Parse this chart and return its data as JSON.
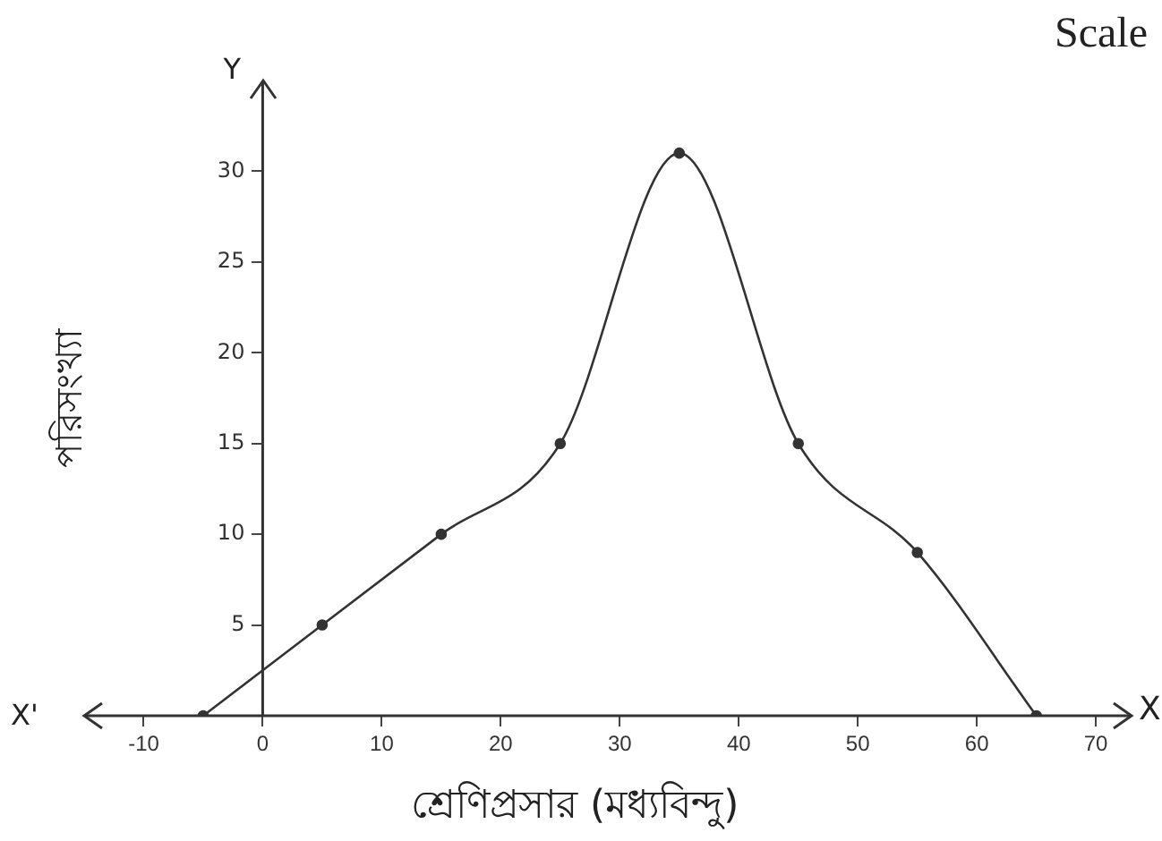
{
  "chart_data": {
    "type": "line",
    "xlabel": "শ্রেণিপ্রসার (মধ্যবিন্দু)",
    "ylabel": "পরিসংখ্যা",
    "x": [
      -5,
      5,
      15,
      25,
      35,
      45,
      55,
      65
    ],
    "series": [
      {
        "color": "#333333",
        "values": [
          0,
          5,
          10,
          15,
          31,
          15,
          9,
          0
        ]
      }
    ],
    "xlim": [
      -15,
      73
    ],
    "xticks": [
      -10,
      0,
      10,
      20,
      30,
      40,
      50,
      60,
      70
    ],
    "ylim": [
      0,
      35
    ],
    "yticks": [
      5,
      10,
      15,
      20,
      25,
      30
    ],
    "marker": "circle",
    "line_style": "solid",
    "grid": false,
    "legend": false,
    "annotations": [
      "Scale",
      "X",
      "X'",
      "Y"
    ]
  }
}
